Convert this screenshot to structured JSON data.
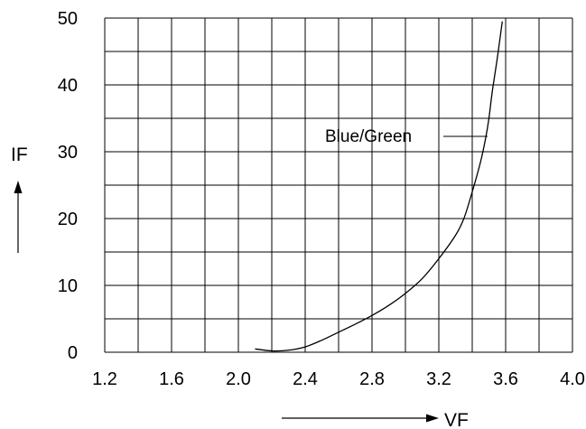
{
  "chart_data": {
    "type": "line",
    "xlabel": "VF",
    "ylabel": "IF",
    "xlim": [
      1.2,
      4.0
    ],
    "ylim": [
      0,
      50
    ],
    "x_ticks": [
      "1.2",
      "1.6",
      "2.0",
      "2.4",
      "2.8",
      "3.2",
      "3.6",
      "4.0"
    ],
    "y_ticks": [
      "0",
      "10",
      "20",
      "30",
      "40",
      "50"
    ],
    "grid": true,
    "x_grid_step": 0.2,
    "y_grid_step": 5,
    "series": [
      {
        "name": "Blue/Green",
        "x": [
          2.1,
          2.2,
          2.3,
          2.4,
          2.5,
          2.6,
          2.7,
          2.8,
          2.9,
          3.0,
          3.1,
          3.2,
          3.3,
          3.35,
          3.4,
          3.45,
          3.48,
          3.5,
          3.52,
          3.55,
          3.58
        ],
        "y": [
          0.5,
          0.2,
          0.3,
          0.8,
          1.8,
          3.0,
          4.2,
          5.5,
          7.0,
          8.8,
          11.0,
          14.0,
          17.5,
          20.0,
          24.0,
          28.5,
          32.0,
          35.0,
          39.0,
          44.0,
          49.5
        ]
      }
    ],
    "annotations": [
      {
        "text": "Blue/Green",
        "points_to_series": "Blue/Green"
      }
    ]
  }
}
